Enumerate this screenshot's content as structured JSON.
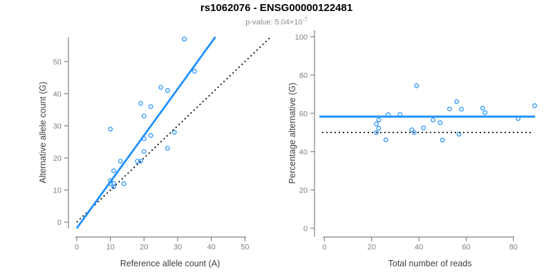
{
  "header": {
    "title": "rs1062076 - ENSG00000122481",
    "subtitle_base": "p-value: 5.04×10",
    "subtitle_exponent": "-7"
  },
  "colors": {
    "accent_blue": "#1E90FF",
    "axis_gray": "#808080",
    "tick_label_gray": "#808080",
    "axis_title_gray": "#404040",
    "title_black": "#000000",
    "subtitle_gray": "#8c8c8c",
    "dotted_line_black": "#000000",
    "background": "#ffffff"
  },
  "chart_data": [
    {
      "type": "scatter",
      "panel": "left",
      "xlabel": "Reference allele count (A)",
      "ylabel": "Alternative allele count (G)",
      "xticks": [
        0,
        10,
        20,
        30,
        40,
        50
      ],
      "yticks": [
        0,
        10,
        20,
        30,
        40,
        50
      ],
      "xlim": [
        -2,
        57.5
      ],
      "ylim": [
        -2,
        57.5
      ],
      "marker": "open-circle",
      "points": [
        [
          10,
          12
        ],
        [
          10,
          13
        ],
        [
          11,
          11
        ],
        [
          11,
          12
        ],
        [
          14,
          12
        ],
        [
          11,
          16
        ],
        [
          13,
          19
        ],
        [
          18,
          19
        ],
        [
          19,
          19
        ],
        [
          20,
          22
        ],
        [
          27,
          23
        ],
        [
          20,
          26
        ],
        [
          22,
          27
        ],
        [
          29,
          28
        ],
        [
          10,
          29
        ],
        [
          20,
          33
        ],
        [
          22,
          36
        ],
        [
          19,
          37
        ],
        [
          27,
          41
        ],
        [
          25,
          42
        ],
        [
          35,
          47
        ],
        [
          32,
          57
        ]
      ],
      "lines": [
        {
          "name": "identity-line",
          "label": "y = x (50% reference)",
          "style": "dotted",
          "color": "#000000",
          "width": 1.8,
          "x1": 0,
          "y1": 0,
          "x2": 57.3,
          "y2": 57.3
        },
        {
          "name": "fit-line",
          "label": "allelic imbalance fit",
          "style": "solid",
          "color": "#1E90FF",
          "width": 2.8,
          "x1": 0,
          "y1": -1.9,
          "x2": 41.2,
          "y2": 57.7
        }
      ]
    },
    {
      "type": "scatter",
      "panel": "right",
      "xlabel": "Total number of reads",
      "ylabel": "Percentage alternative (G)",
      "xticks": [
        0,
        20,
        40,
        60,
        80
      ],
      "yticks": [
        0,
        20,
        40,
        60,
        80,
        100
      ],
      "xlim": [
        -3.6,
        92.6
      ],
      "ylim": [
        -4,
        104
      ],
      "marker": "open-circle",
      "points": [
        [
          22,
          54.5
        ],
        [
          23,
          56.5
        ],
        [
          22,
          50
        ],
        [
          23,
          52.2
        ],
        [
          26,
          46.2
        ],
        [
          27,
          59.3
        ],
        [
          32,
          59.4
        ],
        [
          37,
          51.4
        ],
        [
          38,
          50
        ],
        [
          42,
          52.4
        ],
        [
          50,
          46
        ],
        [
          46,
          56.5
        ],
        [
          49,
          55.1
        ],
        [
          57,
          49.1
        ],
        [
          39,
          74.4
        ],
        [
          53,
          62.3
        ],
        [
          58,
          62.1
        ],
        [
          56,
          66.1
        ],
        [
          68,
          60.3
        ],
        [
          67,
          62.7
        ],
        [
          82,
          57.3
        ],
        [
          89,
          64
        ]
      ],
      "lines": [
        {
          "name": "null-line",
          "label": "50% expected",
          "style": "dotted",
          "color": "#000000",
          "width": 1.8,
          "x1": -1,
          "y1": 50,
          "x2": 88.6,
          "y2": 50
        },
        {
          "name": "mean-line",
          "label": "mean percentage alternative",
          "style": "solid",
          "color": "#1E90FF",
          "width": 3,
          "x1": -2.1,
          "y1": 58.3,
          "x2": 89.2,
          "y2": 58.3
        }
      ]
    }
  ]
}
